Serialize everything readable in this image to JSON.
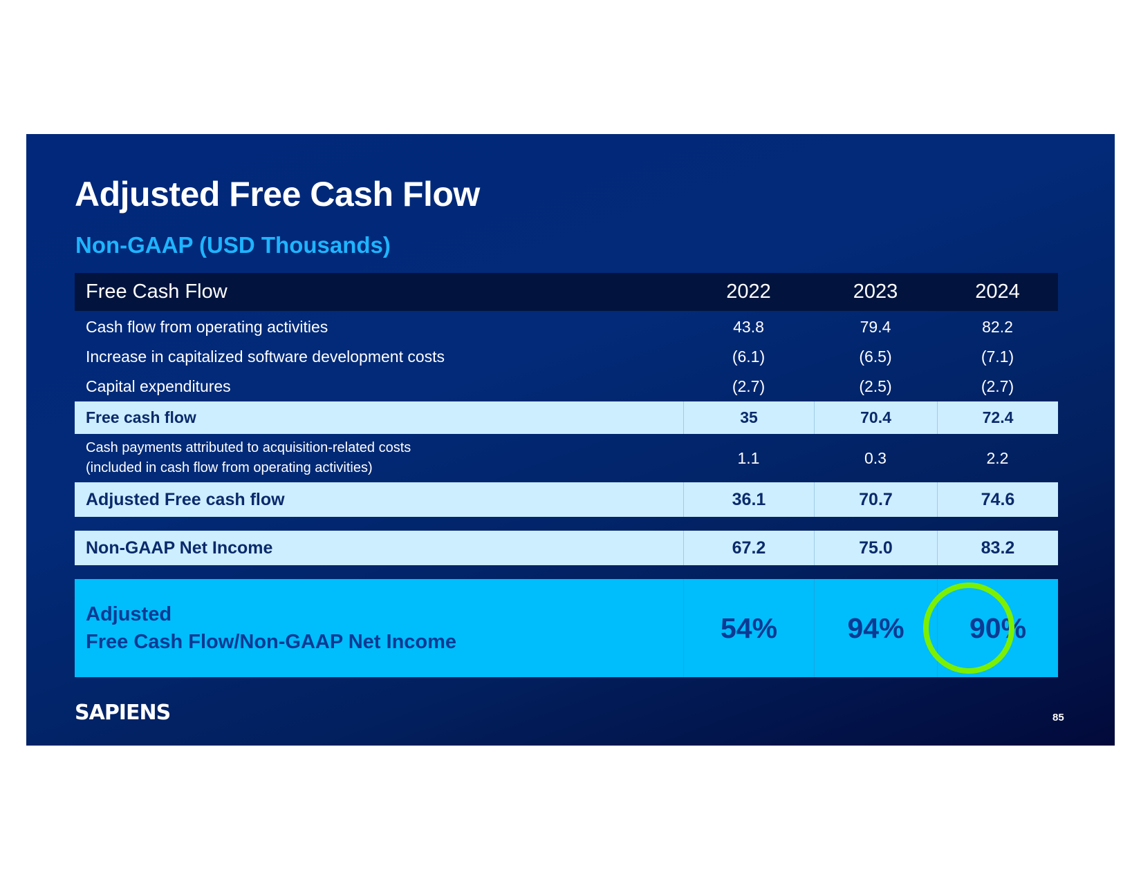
{
  "title": "Adjusted Free Cash Flow",
  "subtitle": "Non-GAAP (USD Thousands)",
  "table": {
    "header": {
      "label": "Free Cash Flow",
      "years": [
        "2022",
        "2023",
        "2024"
      ]
    },
    "rows": [
      {
        "label": "Cash flow from operating activities",
        "values": [
          "43.8",
          "79.4",
          "82.2"
        ]
      },
      {
        "label": "Increase in capitalized software development costs",
        "values": [
          "(6.1)",
          "(6.5)",
          "(7.1)"
        ]
      },
      {
        "label": "Capital expenditures",
        "values": [
          "(2.7)",
          "(2.5)",
          "(2.7)"
        ]
      },
      {
        "label": "Free cash flow",
        "values": [
          "35",
          "70.4",
          "72.4"
        ]
      },
      {
        "label_line1": "Cash payments attributed to acquisition-related costs",
        "label_line2": "(included in cash flow from operating activities)",
        "values": [
          "1.1",
          "0.3",
          "2.2"
        ]
      },
      {
        "label": "Adjusted Free cash flow",
        "values": [
          "36.1",
          "70.7",
          "74.6"
        ]
      },
      {
        "label": "Non-GAAP Net Income",
        "values": [
          "67.2",
          "75.0",
          "83.2"
        ]
      },
      {
        "label_line1": "Adjusted",
        "label_line2": "Free Cash Flow/Non-GAAP Net Income",
        "values": [
          "54%",
          "94%",
          "90%"
        ]
      }
    ]
  },
  "highlight_color": "#7cf000",
  "logo_text": "SAPIENS",
  "page_number": "85"
}
